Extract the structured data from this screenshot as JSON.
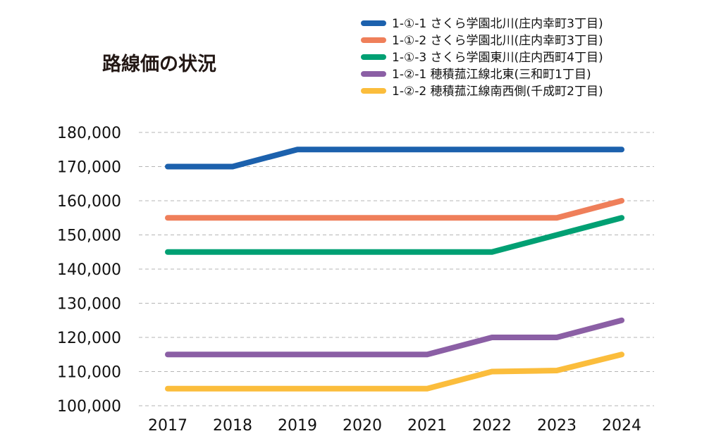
{
  "chart_data": {
    "type": "line",
    "title": "路線価の状況",
    "xlabel": "",
    "ylabel": "",
    "x": [
      "2017",
      "2018",
      "2019",
      "2020",
      "2021",
      "2022",
      "2023",
      "2024"
    ],
    "ylim": [
      100000,
      180000
    ],
    "yticks": [
      100000,
      110000,
      120000,
      130000,
      140000,
      150000,
      160000,
      170000,
      180000
    ],
    "ytick_labels": [
      "100,000",
      "110,000",
      "120,000",
      "130,000",
      "140,000",
      "150,000",
      "160,000",
      "170,000",
      "180,000"
    ],
    "grid": true,
    "legend_position": "top-right",
    "series": [
      {
        "name": "1-①-1 さくら学園北川(庄内幸町3丁目)",
        "color": "#1c61ad",
        "values": [
          170000,
          170000,
          175000,
          175000,
          175000,
          175000,
          175000,
          175000
        ]
      },
      {
        "name": "1-①-2 さくら学園北川(庄内幸町3丁目)",
        "color": "#ef7f5a",
        "values": [
          155000,
          155000,
          155000,
          155000,
          155000,
          155000,
          155000,
          160000
        ]
      },
      {
        "name": "1-①-3 さくら学園東川(庄内西町4丁目)",
        "color": "#00a073",
        "values": [
          145000,
          145000,
          145000,
          145000,
          145000,
          145000,
          150000,
          155000
        ]
      },
      {
        "name": "1-②-1 穂積菰江線北東(三和町1丁目)",
        "color": "#8b5fa5",
        "values": [
          115000,
          115000,
          115000,
          115000,
          115000,
          120000,
          120000,
          125000
        ]
      },
      {
        "name": "1-②-2 穂積菰江線南西側(千成町2丁目)",
        "color": "#fbbd3c",
        "values": [
          105000,
          105000,
          105000,
          105000,
          105000,
          110000,
          110300,
          115000
        ]
      }
    ]
  }
}
